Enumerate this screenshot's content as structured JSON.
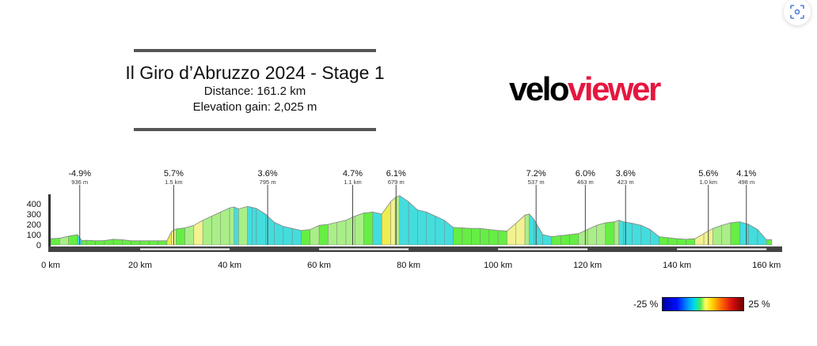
{
  "header": {
    "title": "Il Giro d’Abruzzo 2024 - Stage 1",
    "distance": "Distance: 161.2 km",
    "elevation_gain": "Elevation gain: 2,025 m"
  },
  "logo": {
    "part1": "velo",
    "part2": "viewer"
  },
  "legend": {
    "min_label": "-25 %",
    "max_label": "25 %"
  },
  "colors": {
    "climb_green": "#33ee33",
    "flat_green": "#66dd66",
    "descent_cyan": "#44dddd",
    "steep_yellow": "#f0f070",
    "base_bar": "#444444"
  },
  "chart_data": {
    "type": "area",
    "xlabel": "",
    "ylabel": "",
    "x_unit": "km",
    "xlim": [
      0,
      161.2
    ],
    "ylim": [
      0,
      500
    ],
    "y_ticks": [
      0,
      100,
      200,
      300,
      400
    ],
    "x_ticks": [
      0,
      20,
      40,
      60,
      80,
      100,
      120,
      140,
      160
    ],
    "x_tick_labels": [
      "0 km",
      "20 km",
      "40 km",
      "60 km",
      "80 km",
      "100 km",
      "120 km",
      "140 km",
      "160 km"
    ],
    "distance_km": [
      0,
      2,
      4,
      6,
      7,
      8,
      10,
      12,
      14,
      16,
      18,
      20,
      22,
      24,
      26,
      27,
      28,
      30,
      32,
      34,
      36,
      38,
      40,
      41,
      42,
      44,
      45,
      46,
      48,
      50,
      52,
      54,
      56,
      58,
      60,
      62,
      64,
      66,
      68,
      70,
      72,
      74,
      76,
      77,
      78,
      80,
      82,
      84,
      86,
      88,
      90,
      92,
      94,
      96,
      98,
      100,
      102,
      104,
      106,
      107,
      108,
      110,
      112,
      114,
      116,
      118,
      120,
      122,
      124,
      126,
      127,
      128,
      130,
      132,
      134,
      136,
      138,
      140,
      142,
      144,
      146,
      148,
      150,
      152,
      154,
      156,
      158,
      160,
      161.2
    ],
    "elevation_m": [
      60,
      65,
      85,
      100,
      40,
      45,
      40,
      42,
      55,
      50,
      40,
      40,
      40,
      40,
      40,
      130,
      155,
      165,
      190,
      240,
      280,
      320,
      360,
      370,
      350,
      375,
      365,
      355,
      300,
      220,
      180,
      160,
      140,
      150,
      190,
      200,
      220,
      240,
      280,
      310,
      320,
      300,
      420,
      460,
      480,
      420,
      340,
      320,
      280,
      240,
      170,
      165,
      160,
      160,
      150,
      140,
      135,
      210,
      290,
      300,
      250,
      100,
      80,
      90,
      100,
      110,
      150,
      190,
      215,
      225,
      240,
      225,
      210,
      190,
      150,
      80,
      70,
      60,
      55,
      60,
      110,
      160,
      190,
      215,
      225,
      200,
      150,
      50,
      50
    ],
    "climbs": [
      {
        "km": 6.5,
        "gradient": "-4.9%",
        "length": "936 m"
      },
      {
        "km": 27.5,
        "gradient": "5.7%",
        "length": "1.5 km"
      },
      {
        "km": 48.5,
        "gradient": "3.6%",
        "length": "795 m"
      },
      {
        "km": 67.5,
        "gradient": "4.7%",
        "length": "1.1 km"
      },
      {
        "km": 77.2,
        "gradient": "6.1%",
        "length": "679 m"
      },
      {
        "km": 108.5,
        "gradient": "7.2%",
        "length": "537 m"
      },
      {
        "km": 119.5,
        "gradient": "6.0%",
        "length": "463 m"
      },
      {
        "km": 128.5,
        "gradient": "3.6%",
        "length": "423 m"
      },
      {
        "km": 147,
        "gradient": "5.6%",
        "length": "1.0 km"
      },
      {
        "km": 155.5,
        "gradient": "4.1%",
        "length": "498 m"
      }
    ]
  }
}
